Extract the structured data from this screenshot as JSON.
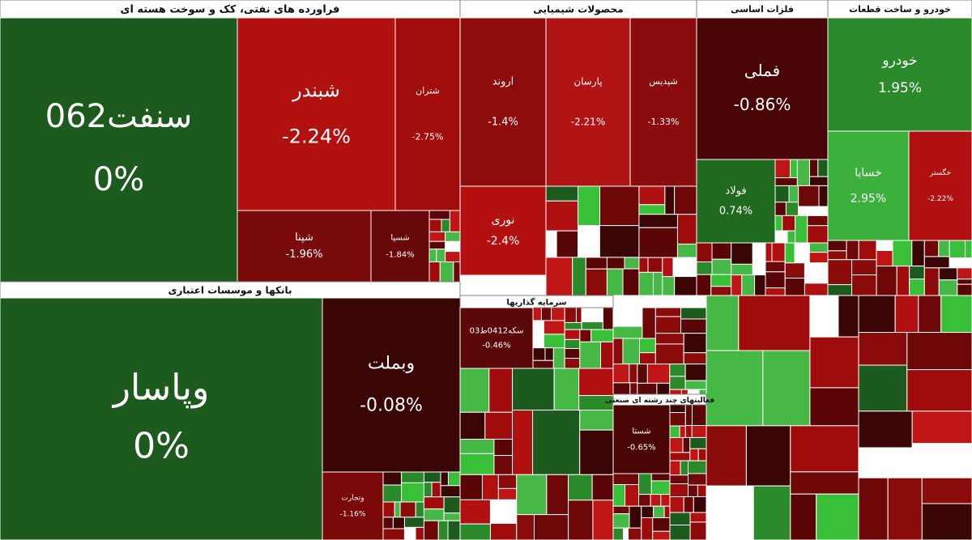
{
  "chart_data": {
    "type": "treemap",
    "groups": [
      {
        "name": "فراورده های نفتی، کک و سوخت هسته ای",
        "tiles": [
          {
            "label": "سنفت062",
            "value": 0,
            "value_label": "0%",
            "color": "#1d5a1d"
          },
          {
            "label": "شبندر",
            "value": -2.24,
            "value_label": "-2.24%",
            "color": "#b31010"
          },
          {
            "label": "شتران",
            "value": -2.75,
            "value_label": "-2.75%",
            "color": "#a30c0c"
          },
          {
            "label": "شپنا",
            "value": -1.96,
            "value_label": "-1.96%",
            "color": "#7a0b0b"
          },
          {
            "label": "شسپا",
            "value": -1.84,
            "value_label": "-1.84%",
            "color": "#680808"
          }
        ]
      },
      {
        "name": "بانکها و موسسات اعتباری",
        "tiles": [
          {
            "label": "وپاسار",
            "value": 0,
            "value_label": "0%",
            "color": "#1d5a1d"
          },
          {
            "label": "وبملت",
            "value": -0.08,
            "value_label": "-0.08%",
            "color": "#3a0505"
          },
          {
            "label": "وتجارت",
            "value": -1.16,
            "value_label": "-1.16%",
            "color": "#7a0808"
          }
        ]
      },
      {
        "name": "محصولات شیمیایی",
        "tiles": [
          {
            "label": "اروند",
            "value": -1.4,
            "value_label": "-1.4%",
            "color": "#8e0c0c"
          },
          {
            "label": "پارسان",
            "value": -2.21,
            "value_label": "-2.21%",
            "color": "#b01414"
          },
          {
            "label": "شپدیس",
            "value": -1.33,
            "value_label": "-1.33%",
            "color": "#8a0c0c"
          },
          {
            "label": "نوری",
            "value": -2.4,
            "value_label": "-2.4%",
            "color": "#b41010"
          }
        ]
      },
      {
        "name": "فلزات اساسی",
        "tiles": [
          {
            "label": "فملی",
            "value": -0.86,
            "value_label": "-0.86%",
            "color": "#4a0606"
          },
          {
            "label": "فولاد",
            "value": 0.74,
            "value_label": "0.74%",
            "color": "#1f6a1f"
          }
        ]
      },
      {
        "name": "خودرو و ساخت قطعات",
        "tiles": [
          {
            "label": "خودرو",
            "value": 1.95,
            "value_label": "1.95%",
            "color": "#2a8a2a"
          },
          {
            "label": "خساپا",
            "value": 2.95,
            "value_label": "2.95%",
            "color": "#3cb03c"
          },
          {
            "label": "خگستر",
            "value": -2.22,
            "value_label": "-2.22%",
            "color": "#b01010"
          }
        ]
      },
      {
        "name": "سرمایه گذاریها",
        "tiles": [
          {
            "label": "سکه0412ط03",
            "value": -0.46,
            "value_label": "-0.46%",
            "color": "#5a0808"
          }
        ]
      },
      {
        "name": "فعالیتهای چند رشته ای صنعتی",
        "tiles": [
          {
            "label": "شستا",
            "value": -0.65,
            "value_label": "-0.65%",
            "color": "#4a0505"
          }
        ]
      }
    ]
  }
}
